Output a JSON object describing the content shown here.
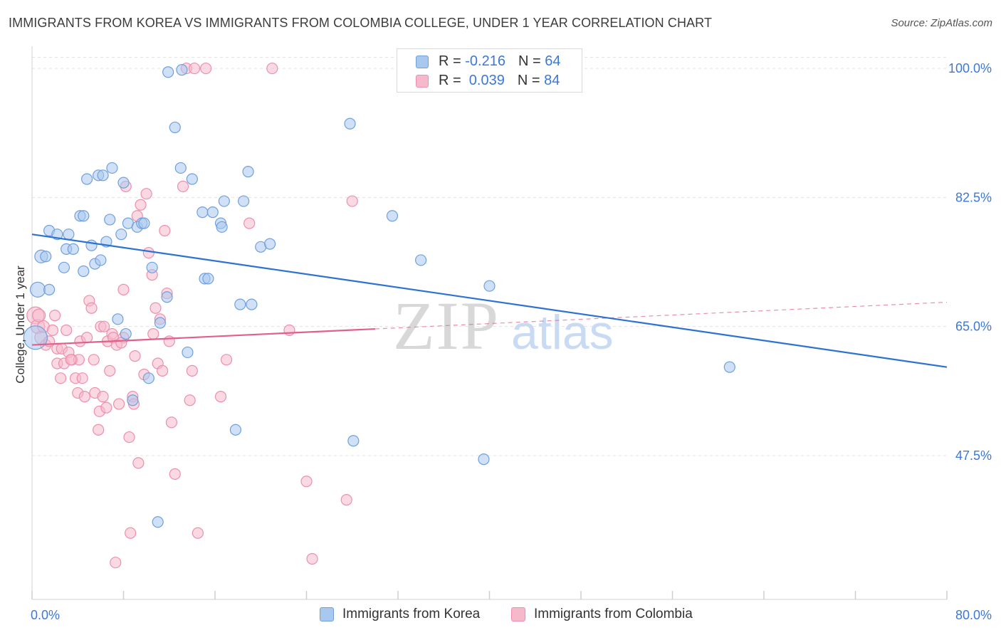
{
  "title": "IMMIGRANTS FROM KOREA VS IMMIGRANTS FROM COLOMBIA COLLEGE, UNDER 1 YEAR CORRELATION CHART",
  "source": "Source: ZipAtlas.com",
  "watermark": {
    "zip": "ZIP",
    "atlas": "atlas"
  },
  "colors": {
    "korea_fill": "#a9c8f0",
    "korea_stroke": "#6fa0dc",
    "korea_line": "#2c72d2",
    "colombia_fill": "#f6b9cc",
    "colombia_stroke": "#ec8fae",
    "colombia_line": "#e0608a",
    "axis_label": "#3c78d8",
    "grid": "#e3e3e3"
  },
  "legend": {
    "rows": [
      {
        "r_label": "R = ",
        "r_value": "-0.216",
        "n_label": "N = ",
        "n_value": "64"
      },
      {
        "r_label": "R = ",
        "r_value": " 0.039",
        "n_label": "N = ",
        "n_value": "84"
      }
    ]
  },
  "chart_data": {
    "type": "scatter",
    "title": "IMMIGRANTS FROM KOREA VS IMMIGRANTS FROM COLOMBIA COLLEGE, UNDER 1 YEAR CORRELATION CHART",
    "xlabel": "",
    "ylabel": "College, Under 1 year",
    "xlim": [
      0,
      80
    ],
    "ylim": [
      28,
      103
    ],
    "x_tick_labels": [
      "0.0%",
      "80.0%"
    ],
    "y_ticks": [
      47.5,
      65.0,
      82.5,
      100.0
    ],
    "y_tick_labels": [
      "47.5%",
      "65.0%",
      "82.5%",
      "100.0%"
    ],
    "x_minor_ticks": [
      0,
      8,
      16,
      24,
      32,
      40,
      48,
      56,
      64,
      72,
      80
    ],
    "legend_position": "top-center",
    "series": [
      {
        "name": "Immigrants from Korea",
        "trend": {
          "x0": 0,
          "y0": 77.5,
          "x1": 80,
          "y1": 59.5,
          "solid_until": 80
        },
        "points": [
          [
            0.3,
            63.5,
            2.2
          ],
          [
            0.5,
            70,
            1.4
          ],
          [
            0.8,
            74.5,
            1.2
          ],
          [
            1.2,
            74.5,
            1
          ],
          [
            1.5,
            70,
            1
          ],
          [
            1.5,
            78,
            1
          ],
          [
            2.2,
            77.5,
            1
          ],
          [
            2.8,
            73,
            1
          ],
          [
            3,
            75.5,
            1
          ],
          [
            3.2,
            77.5,
            1
          ],
          [
            3.6,
            75.5,
            1
          ],
          [
            4.2,
            80,
            1
          ],
          [
            4.5,
            80,
            1
          ],
          [
            4.5,
            72.5,
            1
          ],
          [
            4.8,
            85,
            1
          ],
          [
            5.2,
            76,
            1
          ],
          [
            5.5,
            73.5,
            1
          ],
          [
            5.8,
            85.5,
            1
          ],
          [
            6,
            74,
            1
          ],
          [
            6.2,
            85.5,
            1
          ],
          [
            6.5,
            76.5,
            1
          ],
          [
            6.8,
            79.5,
            1
          ],
          [
            7,
            86.5,
            1
          ],
          [
            7.5,
            66,
            1
          ],
          [
            7.8,
            77.5,
            1
          ],
          [
            8,
            84.5,
            1
          ],
          [
            8.2,
            64,
            1
          ],
          [
            8.4,
            79,
            1
          ],
          [
            8.8,
            55,
            1
          ],
          [
            9.2,
            78.5,
            1
          ],
          [
            9.6,
            79,
            1
          ],
          [
            9.8,
            79,
            1
          ],
          [
            10.2,
            58,
            1
          ],
          [
            10.5,
            73,
            1
          ],
          [
            11,
            38.5,
            1
          ],
          [
            11.2,
            65.5,
            1
          ],
          [
            11.8,
            69,
            1
          ],
          [
            11.9,
            99.5,
            1
          ],
          [
            12.5,
            92,
            1
          ],
          [
            13,
            86.5,
            1
          ],
          [
            13.1,
            99.8,
            1
          ],
          [
            13.6,
            61.5,
            1
          ],
          [
            14,
            85,
            1
          ],
          [
            14.9,
            80.5,
            1
          ],
          [
            15.1,
            71.5,
            1
          ],
          [
            15.4,
            71.5,
            1
          ],
          [
            15.8,
            80.5,
            1
          ],
          [
            16.5,
            79,
            1
          ],
          [
            16.6,
            78.5,
            1
          ],
          [
            16.8,
            82,
            1
          ],
          [
            17.8,
            51,
            1
          ],
          [
            18.2,
            68,
            1
          ],
          [
            18.5,
            82,
            1
          ],
          [
            18.9,
            86,
            1
          ],
          [
            19.2,
            68,
            1
          ],
          [
            20,
            75.8,
            1
          ],
          [
            20.8,
            76.2,
            1
          ],
          [
            27.8,
            92.5,
            1
          ],
          [
            28.1,
            49.5,
            1
          ],
          [
            31.5,
            80,
            1
          ],
          [
            34,
            74,
            1
          ],
          [
            39.5,
            47,
            1
          ],
          [
            40,
            70.5,
            1
          ],
          [
            61,
            59.5,
            1
          ]
        ]
      },
      {
        "name": "Immigrants from Colombia",
        "trend": {
          "x0": 0,
          "y0": 62.5,
          "x1": 80,
          "y1": 68.3,
          "solid_until": 30
        },
        "points": [
          [
            0.3,
            66.5,
            1.6
          ],
          [
            0.5,
            65,
            1.3
          ],
          [
            0.6,
            66.5,
            1.2
          ],
          [
            0.8,
            63.5,
            1.2
          ],
          [
            1,
            65,
            1.1
          ],
          [
            1.2,
            62.5,
            1
          ],
          [
            1.5,
            63,
            1
          ],
          [
            1.8,
            64.5,
            1
          ],
          [
            2,
            66.5,
            1
          ],
          [
            2.2,
            60,
            1
          ],
          [
            2.2,
            62,
            1
          ],
          [
            2.5,
            58,
            1
          ],
          [
            2.6,
            62,
            1
          ],
          [
            2.8,
            60,
            1
          ],
          [
            3,
            64.5,
            1
          ],
          [
            3.2,
            61.5,
            1
          ],
          [
            3.5,
            60.5,
            1
          ],
          [
            3.8,
            58,
            1
          ],
          [
            4,
            56,
            1
          ],
          [
            4.1,
            60.5,
            1
          ],
          [
            4.2,
            63,
            1
          ],
          [
            4.4,
            58,
            1
          ],
          [
            4.6,
            55.5,
            1
          ],
          [
            4.8,
            63.5,
            1
          ],
          [
            5,
            68.5,
            1
          ],
          [
            5.2,
            67.5,
            1
          ],
          [
            5.4,
            60.5,
            1
          ],
          [
            5.5,
            56,
            1
          ],
          [
            5.8,
            51,
            1
          ],
          [
            5.9,
            53.5,
            1
          ],
          [
            6,
            65,
            1
          ],
          [
            6.2,
            55.5,
            1
          ],
          [
            6.5,
            54,
            1
          ],
          [
            6.6,
            63,
            1
          ],
          [
            6.8,
            59,
            1
          ],
          [
            7,
            64,
            1
          ],
          [
            7.1,
            63.5,
            1
          ],
          [
            7.3,
            33,
            1
          ],
          [
            7.4,
            62.5,
            1
          ],
          [
            7.6,
            54.5,
            1
          ],
          [
            8,
            63.5,
            1
          ],
          [
            8,
            70,
            1
          ],
          [
            8.2,
            84,
            1
          ],
          [
            8.5,
            50,
            1
          ],
          [
            8.6,
            37,
            1
          ],
          [
            8.8,
            55.5,
            1
          ],
          [
            8.9,
            54.5,
            1
          ],
          [
            9,
            61,
            1
          ],
          [
            9.2,
            80,
            1
          ],
          [
            9.3,
            46.5,
            1
          ],
          [
            9.5,
            81.5,
            1
          ],
          [
            9.8,
            58.5,
            1
          ],
          [
            10,
            83,
            1
          ],
          [
            10.2,
            75,
            1
          ],
          [
            10.5,
            72,
            1
          ],
          [
            10.6,
            64,
            1
          ],
          [
            10.8,
            67.5,
            1
          ],
          [
            11,
            60,
            1
          ],
          [
            11.2,
            66,
            1
          ],
          [
            11.4,
            59,
            1
          ],
          [
            11.6,
            78,
            1
          ],
          [
            11.8,
            69.5,
            1
          ],
          [
            12,
            63,
            1
          ],
          [
            12.2,
            52,
            1
          ],
          [
            12.5,
            45,
            1
          ],
          [
            13.2,
            84,
            1
          ],
          [
            13.5,
            100,
            1
          ],
          [
            13.8,
            55,
            1
          ],
          [
            14,
            59,
            1
          ],
          [
            14.2,
            100,
            1
          ],
          [
            14.5,
            37,
            1
          ],
          [
            15.2,
            100,
            1
          ],
          [
            16.5,
            55.5,
            1
          ],
          [
            17,
            60.5,
            1
          ],
          [
            19,
            79,
            1
          ],
          [
            21,
            100,
            1
          ],
          [
            22.5,
            64.5,
            1
          ],
          [
            24,
            44,
            1
          ],
          [
            24.5,
            33.5,
            1
          ],
          [
            27.5,
            41.5,
            1
          ],
          [
            28,
            82,
            1
          ],
          [
            6.3,
            65,
            1
          ],
          [
            3.4,
            60.5,
            1
          ],
          [
            7.8,
            62.8,
            1
          ]
        ]
      }
    ]
  },
  "bottom_legend": {
    "korea": "Immigrants from Korea",
    "colombia": "Immigrants from Colombia"
  }
}
